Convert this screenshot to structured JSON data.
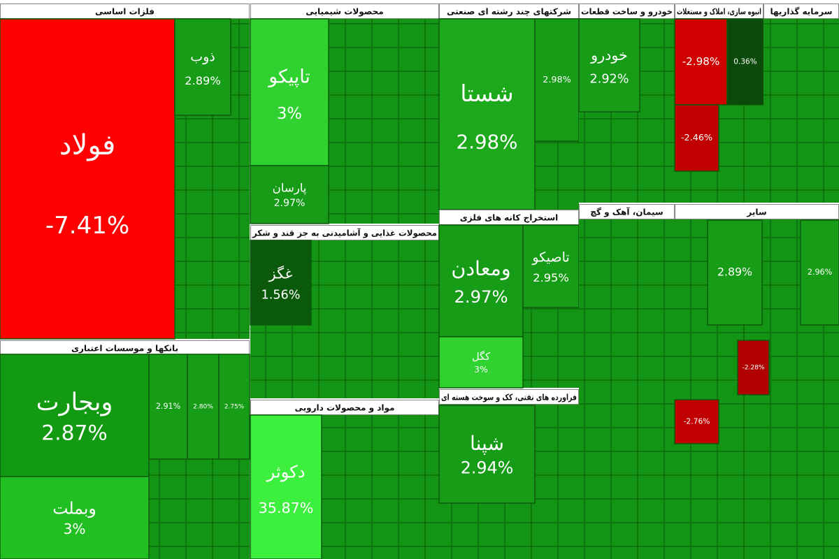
{
  "sectors": [
    {
      "title": "فلزات اساسی",
      "tiles": [
        {
          "name": "فولاد",
          "change": "-7.41%",
          "color": "#ff0000"
        },
        {
          "name": "ذوب",
          "change": "2.89%",
          "color": "#169c16"
        }
      ]
    },
    {
      "title": "بانکها و موسسات اعتباری",
      "tiles": [
        {
          "name": "وبجارت",
          "change": "2.87%",
          "color": "#139a13"
        },
        {
          "name": "وبملت",
          "change": "3%",
          "color": "#22bf22"
        },
        {
          "change": "2.91%",
          "color": "#169c16"
        },
        {
          "change": "2.80%",
          "color": "#169c16"
        },
        {
          "change": "2.75%",
          "color": "#169c16"
        }
      ]
    },
    {
      "title": "محصولات شیمیایی",
      "tiles": [
        {
          "name": "تاپیکو",
          "change": "3%",
          "color": "#2fd22f"
        },
        {
          "name": "پارسان",
          "change": "2.97%",
          "color": "#169c16"
        }
      ]
    },
    {
      "title": "محصولات غذایی و آشامیدنی به جز قند و شکر",
      "tiles": [
        {
          "name": "غگز",
          "change": "1.56%",
          "color": "#0b5a0b"
        }
      ]
    },
    {
      "title": "مواد و محصولات دارویی",
      "tiles": [
        {
          "name": "دکوثر",
          "change": "35.87%",
          "color": "#3ef03e"
        }
      ]
    },
    {
      "title": "شرکتهای چند رشته ای صنعتی",
      "tiles": [
        {
          "name": "شستا",
          "change": "2.98%",
          "color": "#1caa1c"
        },
        {
          "change": "2.98%",
          "color": "#169c16"
        }
      ]
    },
    {
      "title": "استخراج کانه های فلزی",
      "tiles": [
        {
          "name": "ومعادن",
          "change": "2.97%",
          "color": "#169c16"
        },
        {
          "name": "تاصیکو",
          "change": "2.95%",
          "color": "#169c16"
        },
        {
          "name": "کگل",
          "change": "3%",
          "color": "#2fd22f"
        }
      ]
    },
    {
      "title": "فراورده های نفتی، کک و سوخت هسته ای",
      "tiles": [
        {
          "name": "شپنا",
          "change": "2.94%",
          "color": "#169c16"
        }
      ]
    },
    {
      "title": "خودرو و ساخت قطعات",
      "tiles": [
        {
          "name": "خودرو",
          "change": "2.92%",
          "color": "#169c16"
        }
      ]
    },
    {
      "title": "انبوه سازی، املاک و مستغلات",
      "tiles": [
        {
          "change": "-2.98%",
          "color": "#d00000"
        },
        {
          "change": "-2.46%",
          "color": "#c00000"
        },
        {
          "change": "0.36%",
          "color": "#0b4a0b"
        }
      ]
    },
    {
      "title": "سرمایه گذاریها",
      "tiles": []
    },
    {
      "title": "سیمان، آهک و گچ",
      "tiles": []
    },
    {
      "title": "سایر",
      "tiles": [
        {
          "change": "-2.28%",
          "color": "#b00000"
        },
        {
          "change": "-2.76%",
          "color": "#c00000"
        },
        {
          "change": "2.89%",
          "color": "#169c16"
        },
        {
          "change": "2.96%",
          "color": "#169c16"
        }
      ]
    }
  ]
}
